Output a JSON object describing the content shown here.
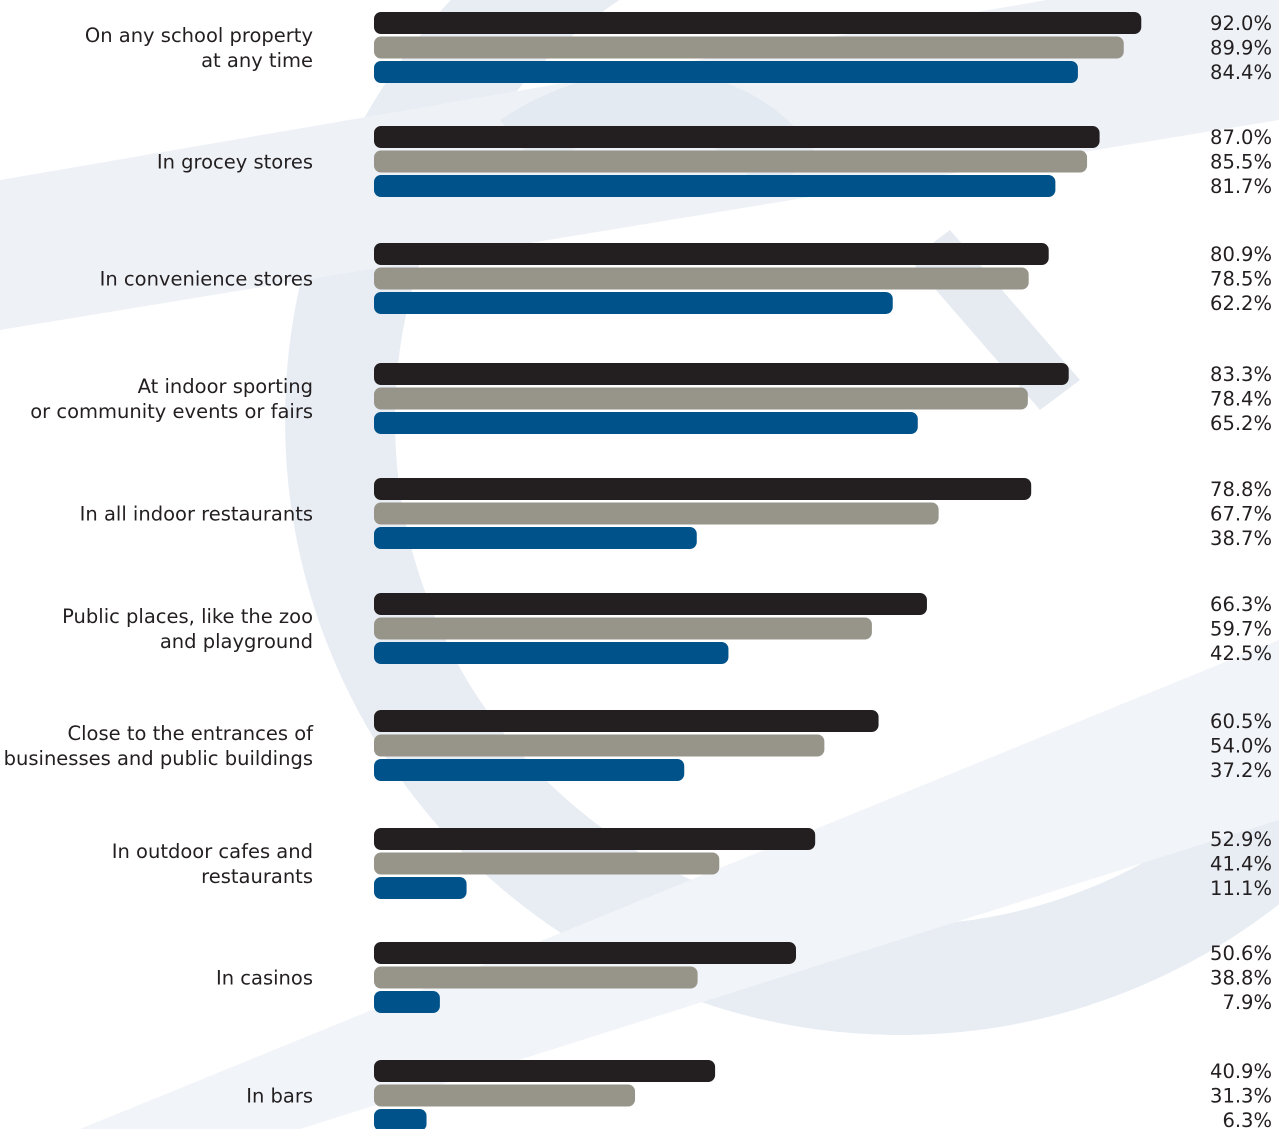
{
  "chart_data": {
    "type": "bar",
    "orientation": "horizontal",
    "unit": "%",
    "xlim": [
      0,
      100
    ],
    "grid": false,
    "categories": [
      [
        "On any school property",
        "at any time"
      ],
      [
        "In grocey stores"
      ],
      [
        "In convenience stores"
      ],
      [
        "At indoor sporting",
        "or community events or fairs"
      ],
      [
        "In all indoor restaurants"
      ],
      [
        "Public places, like the zoo",
        "and playground"
      ],
      [
        "Close to the entrances of",
        "businesses and public buildings"
      ],
      [
        "In outdoor cafes and",
        "restaurants"
      ],
      [
        "In casinos"
      ],
      [
        "In bars"
      ]
    ],
    "series": [
      {
        "color": "#231f20",
        "values": [
          92.0,
          87.0,
          80.9,
          83.3,
          78.8,
          66.3,
          60.5,
          52.9,
          50.6,
          40.9
        ],
        "labels": [
          "92.0%",
          "87.0%",
          "80.9%",
          "83.3%",
          "78.8%",
          "66.3%",
          "60.5%",
          "52.9%",
          "50.6%",
          "40.9%"
        ]
      },
      {
        "color": "#97948a",
        "values": [
          89.9,
          85.5,
          78.5,
          78.4,
          67.7,
          59.7,
          54.0,
          41.4,
          38.8,
          31.3
        ],
        "labels": [
          "89.9%",
          "85.5%",
          "78.5%",
          "78.4%",
          "67.7%",
          "59.7%",
          "54.0%",
          "41.4%",
          "38.8%",
          "31.3%"
        ]
      },
      {
        "color": "#00528a",
        "values": [
          84.4,
          81.7,
          62.2,
          65.2,
          38.7,
          42.5,
          37.2,
          11.1,
          7.9,
          6.3
        ],
        "labels": [
          "84.4%",
          "81.7%",
          "62.2%",
          "65.2%",
          "38.7%",
          "42.5%",
          "37.2%",
          "11.1%",
          "7.9%",
          "6.3%"
        ]
      }
    ]
  },
  "colors": {
    "background": "#ffffff",
    "watermark": "#e6ecf3"
  }
}
